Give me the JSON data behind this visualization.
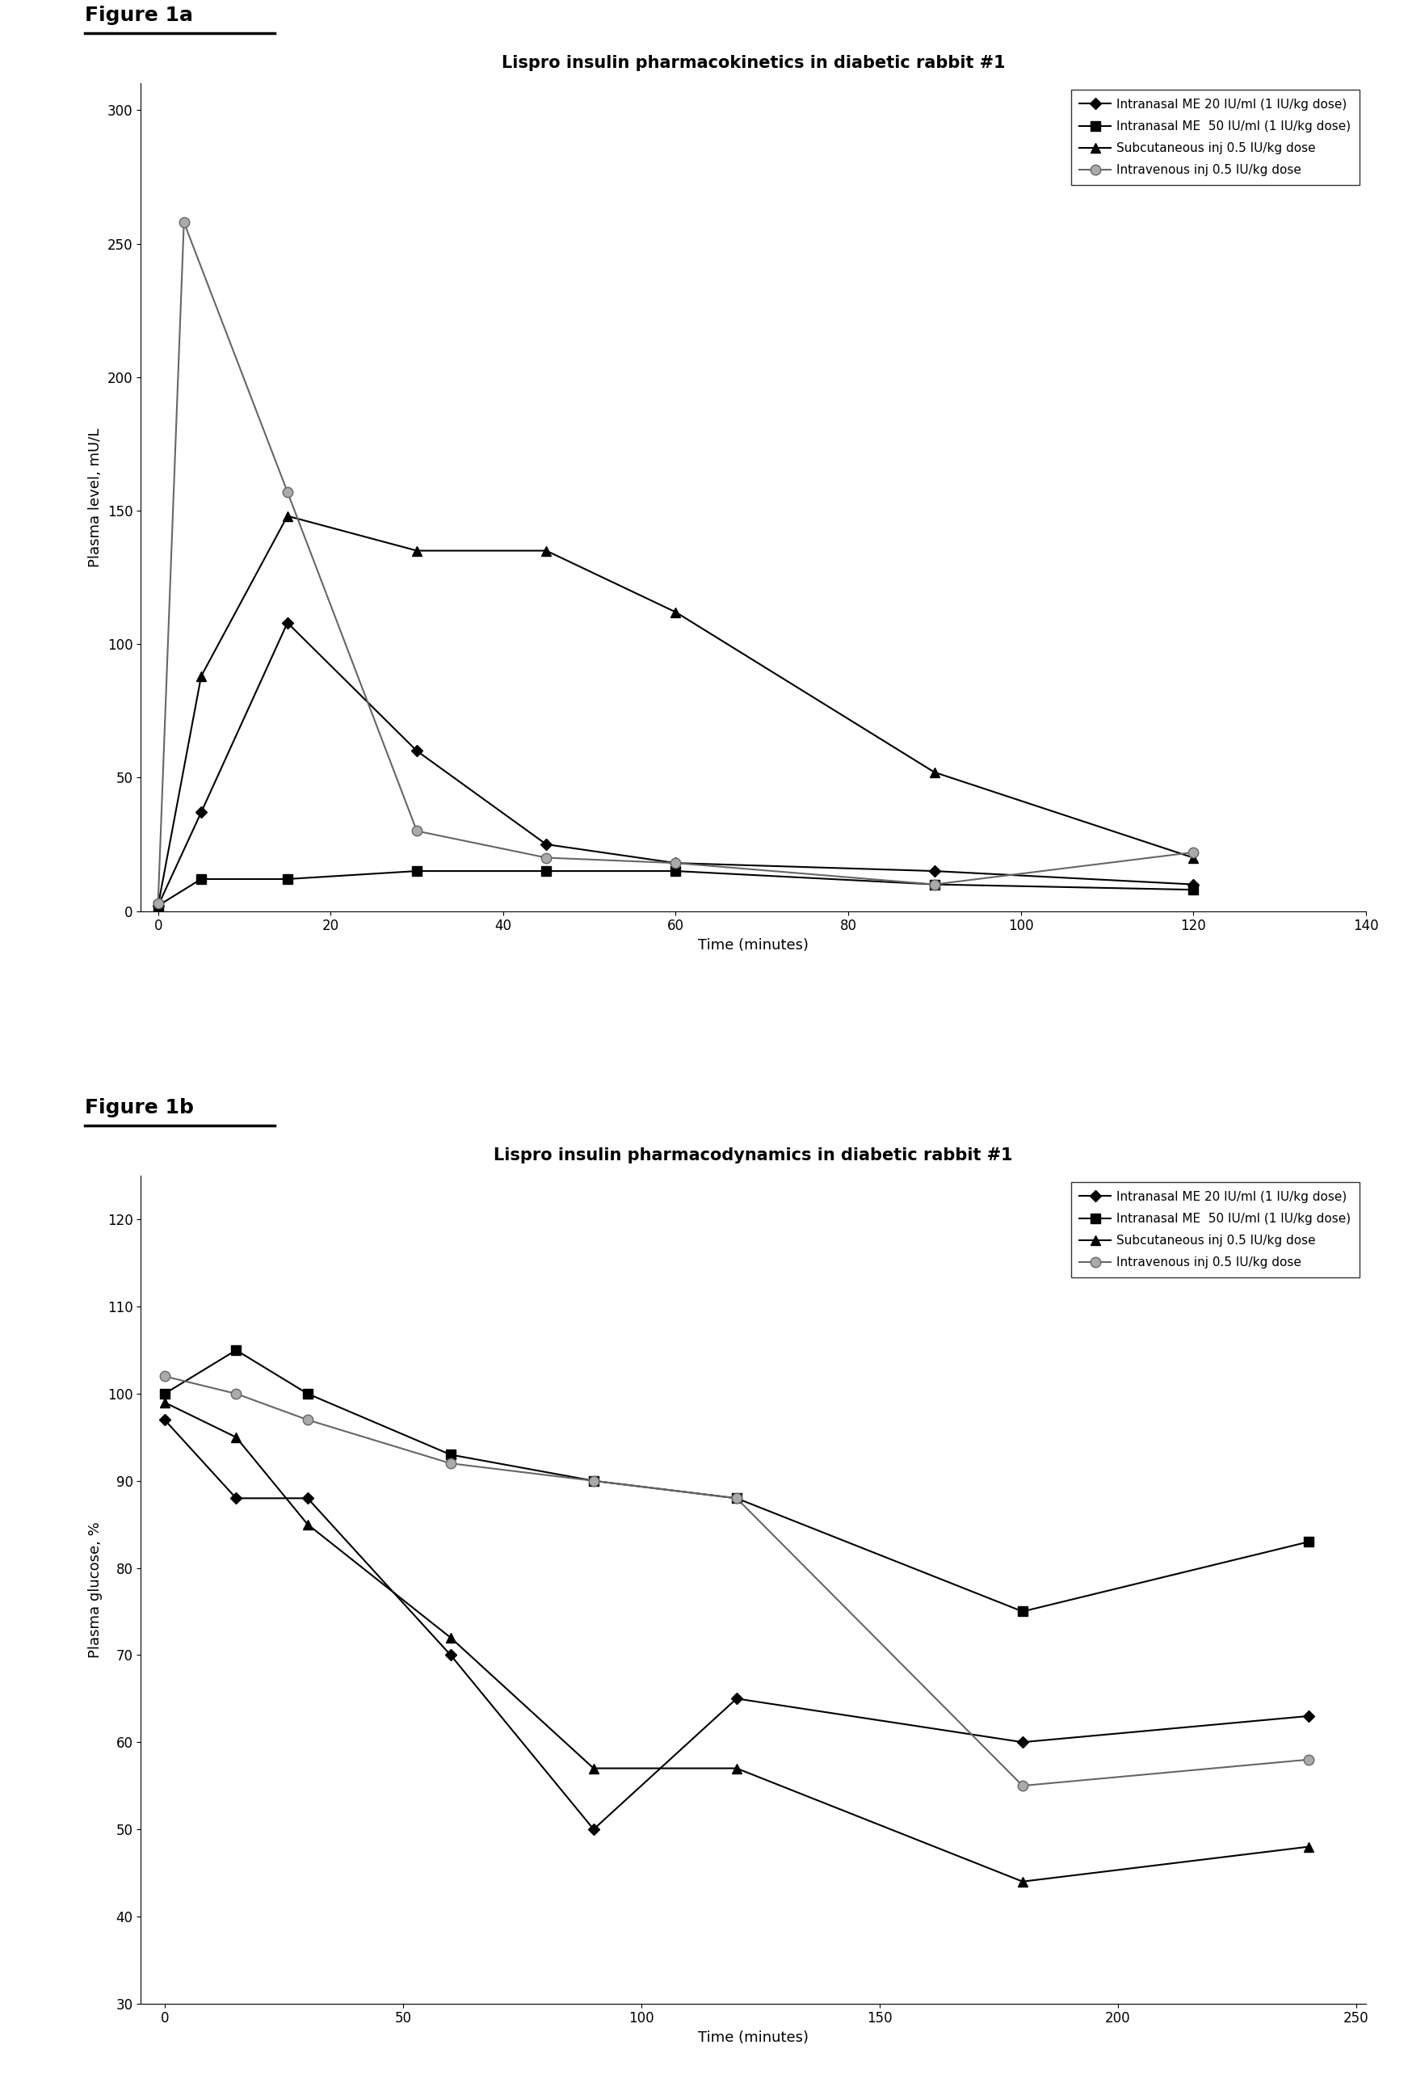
{
  "fig1a": {
    "title": "Lispro insulin pharmacokinetics in diabetic rabbit #1",
    "xlabel": "Time (minutes)",
    "ylabel": "Plasma level, mU/L",
    "xlim": [
      -2,
      140
    ],
    "ylim": [
      0,
      310
    ],
    "xticks": [
      0,
      20,
      40,
      60,
      80,
      100,
      120,
      140
    ],
    "yticks": [
      0,
      50,
      100,
      150,
      200,
      250,
      300
    ],
    "series": [
      {
        "label": "Intranasal ME 20 IU/ml (1 IU/kg dose)",
        "x": [
          0,
          5,
          15,
          30,
          45,
          60,
          90,
          120
        ],
        "y": [
          2,
          37,
          108,
          60,
          25,
          18,
          15,
          10
        ],
        "marker": "D",
        "color": "#000000",
        "linewidth": 1.5,
        "markersize": 7,
        "markerfacecolor": "#000000"
      },
      {
        "label": "Intranasal ME  50 IU/ml (1 IU/kg dose)",
        "x": [
          0,
          5,
          15,
          30,
          45,
          60,
          90,
          120
        ],
        "y": [
          2,
          12,
          12,
          15,
          15,
          15,
          10,
          8
        ],
        "marker": "s",
        "color": "#000000",
        "linewidth": 1.5,
        "markersize": 8,
        "markerfacecolor": "#000000"
      },
      {
        "label": "Subcutaneous inj 0.5 IU/kg dose",
        "x": [
          0,
          5,
          15,
          30,
          45,
          60,
          90,
          120
        ],
        "y": [
          2,
          88,
          148,
          135,
          135,
          112,
          52,
          20
        ],
        "marker": "^",
        "color": "#000000",
        "linewidth": 1.5,
        "markersize": 8,
        "markerfacecolor": "#000000"
      },
      {
        "label": "Intravenous inj 0.5 IU/kg dose",
        "x": [
          0,
          3,
          15,
          30,
          45,
          60,
          90,
          120
        ],
        "y": [
          3,
          258,
          157,
          30,
          20,
          18,
          10,
          22
        ],
        "marker": "o",
        "color": "#666666",
        "linewidth": 1.5,
        "markersize": 9,
        "markerfacecolor": "#aaaaaa"
      }
    ]
  },
  "fig1b": {
    "title": "Lispro insulin pharmacodynamics in diabetic rabbit #1",
    "xlabel": "Time (minutes)",
    "ylabel": "Plasma glucose, %",
    "xlim": [
      -5,
      252
    ],
    "ylim": [
      30,
      125
    ],
    "xticks": [
      0,
      50,
      100,
      150,
      200,
      250
    ],
    "yticks": [
      30,
      40,
      50,
      60,
      70,
      80,
      90,
      100,
      110,
      120
    ],
    "series": [
      {
        "label": "Intranasal ME 20 IU/ml (1 IU/kg dose)",
        "x": [
          0,
          15,
          30,
          60,
          90,
          120,
          180,
          240
        ],
        "y": [
          97,
          88,
          88,
          70,
          50,
          65,
          60,
          63
        ],
        "marker": "D",
        "color": "#000000",
        "linewidth": 1.5,
        "markersize": 7,
        "markerfacecolor": "#000000"
      },
      {
        "label": "Intranasal ME  50 IU/ml (1 IU/kg dose)",
        "x": [
          0,
          15,
          30,
          60,
          90,
          120,
          180,
          240
        ],
        "y": [
          100,
          105,
          100,
          93,
          90,
          88,
          75,
          83
        ],
        "marker": "s",
        "color": "#000000",
        "linewidth": 1.5,
        "markersize": 8,
        "markerfacecolor": "#000000"
      },
      {
        "label": "Subcutaneous inj 0.5 IU/kg dose",
        "x": [
          0,
          15,
          30,
          60,
          90,
          120,
          180,
          240
        ],
        "y": [
          99,
          95,
          85,
          72,
          57,
          57,
          44,
          48
        ],
        "marker": "^",
        "color": "#000000",
        "linewidth": 1.5,
        "markersize": 8,
        "markerfacecolor": "#000000"
      },
      {
        "label": "Intravenous inj 0.5 IU/kg dose",
        "x": [
          0,
          15,
          30,
          60,
          90,
          120,
          180,
          240
        ],
        "y": [
          102,
          100,
          97,
          92,
          90,
          88,
          55,
          58
        ],
        "marker": "o",
        "color": "#666666",
        "linewidth": 1.5,
        "markersize": 9,
        "markerfacecolor": "#aaaaaa"
      }
    ]
  },
  "figure_label_a": "Figure 1a",
  "figure_label_b": "Figure 1b",
  "background_color": "#ffffff",
  "label_fontsize": 18,
  "title_fontsize": 15,
  "axis_label_fontsize": 13,
  "tick_fontsize": 12,
  "legend_fontsize": 11
}
